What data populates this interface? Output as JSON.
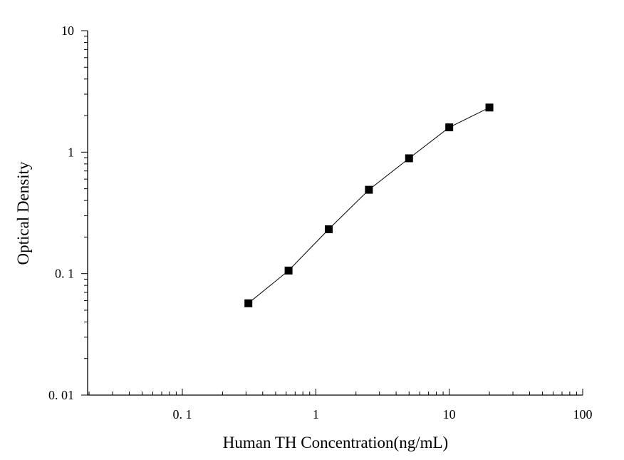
{
  "chart_data": {
    "type": "scatter",
    "title": "",
    "xlabel": "Human TH Concentration(ng/mL)",
    "ylabel": "Optical Density",
    "x_scale": "log",
    "y_scale": "log",
    "xlim": [
      0.02,
      100
    ],
    "ylim": [
      0.01,
      10
    ],
    "x_ticks": [
      {
        "value": 0.1,
        "label": "0. 1"
      },
      {
        "value": 1,
        "label": "1"
      },
      {
        "value": 10,
        "label": "10"
      },
      {
        "value": 100,
        "label": "100"
      }
    ],
    "y_ticks": [
      {
        "value": 0.01,
        "label": "0. 01"
      },
      {
        "value": 0.1,
        "label": "0. 1"
      },
      {
        "value": 1,
        "label": "1"
      },
      {
        "value": 10,
        "label": "10"
      }
    ],
    "grid": false,
    "legend": "none",
    "series": [
      {
        "x": [
          0.3125,
          0.625,
          1.25,
          2.5,
          5,
          10,
          20
        ],
        "y": [
          0.057,
          0.106,
          0.232,
          0.49,
          0.89,
          1.6,
          2.33
        ],
        "marker": "square",
        "color": "#000000",
        "connected": true
      }
    ]
  }
}
